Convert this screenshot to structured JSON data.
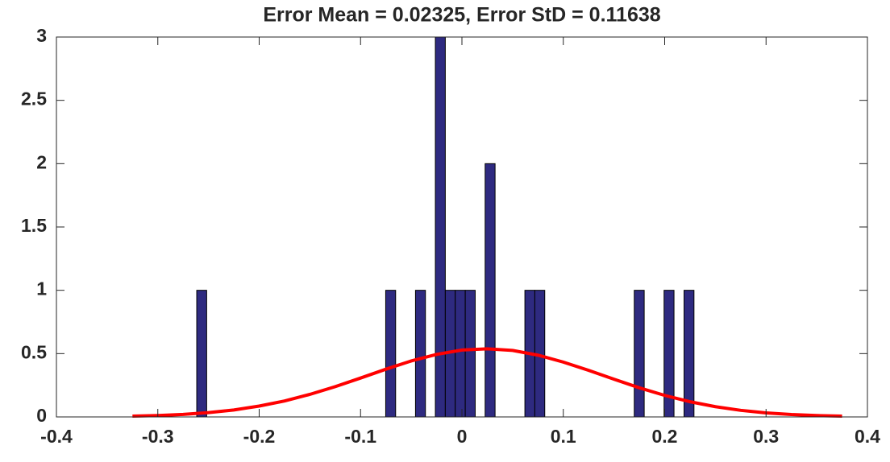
{
  "chart_data": [
    {
      "type": "histogram",
      "title": "Error Mean = 0.02325, Error StD = 0.11638",
      "bins": [
        -0.2616,
        -0.2518,
        -0.242,
        -0.2322,
        -0.2224,
        -0.2126,
        -0.2027,
        -0.1929,
        -0.1831,
        -0.1733,
        -0.1635,
        -0.1537,
        -0.1439,
        -0.1341,
        -0.1243,
        -0.1145,
        -0.1046,
        -0.0948,
        -0.085,
        -0.0752,
        -0.0654,
        -0.0556,
        -0.0458,
        -0.036,
        -0.0262,
        -0.0164,
        -0.0066,
        0.0033,
        0.0131,
        0.0229,
        0.0327,
        0.0425,
        0.0523,
        0.0621,
        0.0719,
        0.0817,
        0.0915,
        0.1013,
        0.1112,
        0.121,
        0.1308,
        0.1406,
        0.1504,
        0.1602,
        0.17,
        0.1798,
        0.1896,
        0.1994,
        0.2092,
        0.2191,
        0.2289
      ],
      "values": [
        1,
        0,
        0,
        0,
        0,
        0,
        0,
        0,
        0,
        0,
        0,
        0,
        0,
        0,
        0,
        0,
        0,
        0,
        0,
        1,
        0,
        0,
        1,
        0,
        3,
        1,
        1,
        1,
        0,
        2,
        0,
        0,
        0,
        1,
        1,
        0,
        0,
        0,
        0,
        0,
        0,
        0,
        0,
        0,
        1,
        0,
        0,
        1,
        0,
        1
      ],
      "color": "#2e2a80",
      "xlim": [
        -0.4,
        0.4
      ],
      "ylim": [
        0,
        3
      ],
      "xticks": [
        -0.4,
        -0.3,
        -0.2,
        -0.1,
        0,
        0.1,
        0.2,
        0.3,
        0.4
      ],
      "yticks": [
        0,
        0.5,
        1,
        1.5,
        2,
        2.5,
        3
      ]
    },
    {
      "type": "line",
      "color": "#ff0000",
      "x": [
        -0.325,
        -0.3,
        -0.275,
        -0.25,
        -0.225,
        -0.2,
        -0.175,
        -0.15,
        -0.125,
        -0.1,
        -0.075,
        -0.05,
        -0.025,
        0,
        0.025,
        0.05,
        0.075,
        0.1,
        0.125,
        0.15,
        0.175,
        0.2,
        0.225,
        0.25,
        0.275,
        0.3,
        0.325,
        0.35,
        0.375
      ],
      "values": [
        0.006,
        0.011,
        0.02,
        0.034,
        0.055,
        0.086,
        0.126,
        0.178,
        0.239,
        0.307,
        0.377,
        0.442,
        0.494,
        0.528,
        0.538,
        0.525,
        0.488,
        0.433,
        0.368,
        0.298,
        0.23,
        0.17,
        0.12,
        0.081,
        0.052,
        0.032,
        0.019,
        0.011,
        0.006
      ]
    }
  ]
}
